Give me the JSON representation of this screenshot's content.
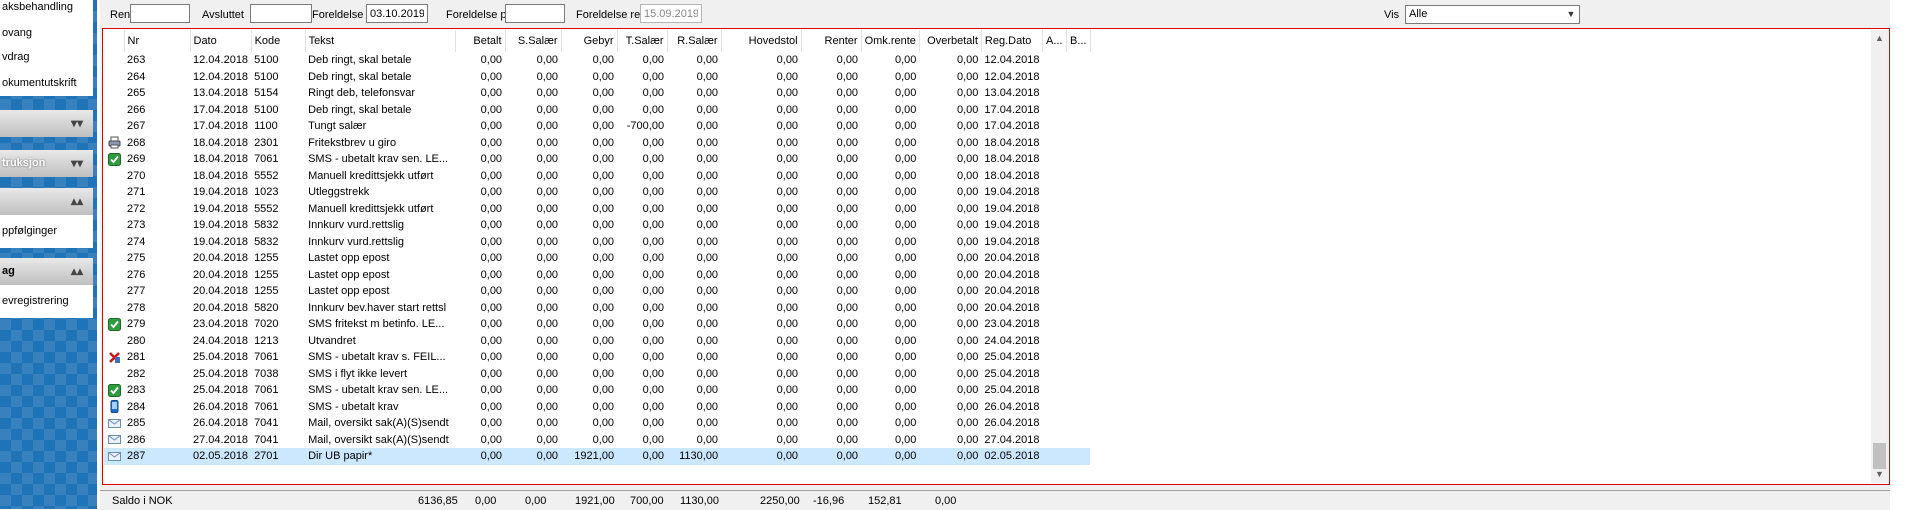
{
  "sidebar": {
    "top_items": [
      "aksbehandling",
      "ovang",
      "vdrag",
      "okumentutskrift"
    ],
    "collapsed_header": "",
    "section_header_2": "truksjon",
    "section_header_3": "",
    "mid_items": [
      "ppfølginger"
    ],
    "section_header_4": "ag",
    "bottom_items": [
      "evregistrering"
    ]
  },
  "filters": {
    "rente_til_label": "Rente til",
    "rente_til_value": "",
    "avsluttet_label": "Avsluttet",
    "avsluttet_value": "",
    "foreldelse_label": "Foreldelse",
    "foreldelse_value": "03.10.2019",
    "foreldelse_pant_label": "Foreldelse pant",
    "foreldelse_pant_value": "",
    "foreldelse_renter_label": "Foreldelse renter",
    "foreldelse_renter_value": "15.09.2019",
    "vis_label": "Vis",
    "vis_selected": "Alle"
  },
  "grid": {
    "columns": [
      "",
      "Nr",
      "Dato",
      "Kode",
      "Tekst",
      "Betalt",
      "S.Salær",
      "Gebyr",
      "T.Salær",
      "R.Salær",
      "Hovedstol",
      "Renter",
      "Omk.rente",
      "Overbetalt",
      "Reg.Dato",
      "A...",
      "B..."
    ],
    "rows": [
      {
        "icon": "",
        "nr": "263",
        "dato": "12.04.2018",
        "kode": "5100",
        "tekst": "Deb ringt, skal betale",
        "betalt": "0,00",
        "ssalaer": "0,00",
        "gebyr": "0,00",
        "tsalaer": "0,00",
        "rsalaer": "0,00",
        "hovedstol": "0,00",
        "renter": "0,00",
        "omkrente": "0,00",
        "overbetalt": "0,00",
        "regdato": "12.04.2018"
      },
      {
        "icon": "",
        "nr": "264",
        "dato": "12.04.2018",
        "kode": "5100",
        "tekst": "Deb ringt, skal betale",
        "betalt": "0,00",
        "ssalaer": "0,00",
        "gebyr": "0,00",
        "tsalaer": "0,00",
        "rsalaer": "0,00",
        "hovedstol": "0,00",
        "renter": "0,00",
        "omkrente": "0,00",
        "overbetalt": "0,00",
        "regdato": "12.04.2018"
      },
      {
        "icon": "",
        "nr": "265",
        "dato": "13.04.2018",
        "kode": "5154",
        "tekst": "Ringt deb, telefonsvar",
        "betalt": "0,00",
        "ssalaer": "0,00",
        "gebyr": "0,00",
        "tsalaer": "0,00",
        "rsalaer": "0,00",
        "hovedstol": "0,00",
        "renter": "0,00",
        "omkrente": "0,00",
        "overbetalt": "0,00",
        "regdato": "13.04.2018"
      },
      {
        "icon": "",
        "nr": "266",
        "dato": "17.04.2018",
        "kode": "5100",
        "tekst": "Deb ringt, skal betale",
        "betalt": "0,00",
        "ssalaer": "0,00",
        "gebyr": "0,00",
        "tsalaer": "0,00",
        "rsalaer": "0,00",
        "hovedstol": "0,00",
        "renter": "0,00",
        "omkrente": "0,00",
        "overbetalt": "0,00",
        "regdato": "17.04.2018"
      },
      {
        "icon": "",
        "nr": "267",
        "dato": "17.04.2018",
        "kode": "1100",
        "tekst": "Tungt salær",
        "betalt": "0,00",
        "ssalaer": "0,00",
        "gebyr": "0,00",
        "tsalaer": "-700,00",
        "rsalaer": "0,00",
        "hovedstol": "0,00",
        "renter": "0,00",
        "omkrente": "0,00",
        "overbetalt": "0,00",
        "regdato": "17.04.2018"
      },
      {
        "icon": "printer",
        "nr": "268",
        "dato": "18.04.2018",
        "kode": "2301",
        "tekst": "Fritekstbrev u giro",
        "betalt": "0,00",
        "ssalaer": "0,00",
        "gebyr": "0,00",
        "tsalaer": "0,00",
        "rsalaer": "0,00",
        "hovedstol": "0,00",
        "renter": "0,00",
        "omkrente": "0,00",
        "overbetalt": "0,00",
        "regdato": "18.04.2018"
      },
      {
        "icon": "check",
        "nr": "269",
        "dato": "18.04.2018",
        "kode": "7061",
        "tekst": "SMS - ubetalt krav sen. LE...",
        "betalt": "0,00",
        "ssalaer": "0,00",
        "gebyr": "0,00",
        "tsalaer": "0,00",
        "rsalaer": "0,00",
        "hovedstol": "0,00",
        "renter": "0,00",
        "omkrente": "0,00",
        "overbetalt": "0,00",
        "regdato": "18.04.2018"
      },
      {
        "icon": "",
        "nr": "270",
        "dato": "18.04.2018",
        "kode": "5552",
        "tekst": "Manuell kredittsjekk utført",
        "betalt": "0,00",
        "ssalaer": "0,00",
        "gebyr": "0,00",
        "tsalaer": "0,00",
        "rsalaer": "0,00",
        "hovedstol": "0,00",
        "renter": "0,00",
        "omkrente": "0,00",
        "overbetalt": "0,00",
        "regdato": "18.04.2018"
      },
      {
        "icon": "",
        "nr": "271",
        "dato": "19.04.2018",
        "kode": "1023",
        "tekst": "Utleggstrekk",
        "betalt": "0,00",
        "ssalaer": "0,00",
        "gebyr": "0,00",
        "tsalaer": "0,00",
        "rsalaer": "0,00",
        "hovedstol": "0,00",
        "renter": "0,00",
        "omkrente": "0,00",
        "overbetalt": "0,00",
        "regdato": "19.04.2018"
      },
      {
        "icon": "",
        "nr": "272",
        "dato": "19.04.2018",
        "kode": "5552",
        "tekst": "Manuell kredittsjekk utført",
        "betalt": "0,00",
        "ssalaer": "0,00",
        "gebyr": "0,00",
        "tsalaer": "0,00",
        "rsalaer": "0,00",
        "hovedstol": "0,00",
        "renter": "0,00",
        "omkrente": "0,00",
        "overbetalt": "0,00",
        "regdato": "19.04.2018"
      },
      {
        "icon": "",
        "nr": "273",
        "dato": "19.04.2018",
        "kode": "5832",
        "tekst": "Innkurv vurd.rettslig",
        "betalt": "0,00",
        "ssalaer": "0,00",
        "gebyr": "0,00",
        "tsalaer": "0,00",
        "rsalaer": "0,00",
        "hovedstol": "0,00",
        "renter": "0,00",
        "omkrente": "0,00",
        "overbetalt": "0,00",
        "regdato": "19.04.2018"
      },
      {
        "icon": "",
        "nr": "274",
        "dato": "19.04.2018",
        "kode": "5832",
        "tekst": "Innkurv vurd.rettslig",
        "betalt": "0,00",
        "ssalaer": "0,00",
        "gebyr": "0,00",
        "tsalaer": "0,00",
        "rsalaer": "0,00",
        "hovedstol": "0,00",
        "renter": "0,00",
        "omkrente": "0,00",
        "overbetalt": "0,00",
        "regdato": "19.04.2018"
      },
      {
        "icon": "",
        "nr": "275",
        "dato": "20.04.2018",
        "kode": "1255",
        "tekst": "Lastet opp epost",
        "betalt": "0,00",
        "ssalaer": "0,00",
        "gebyr": "0,00",
        "tsalaer": "0,00",
        "rsalaer": "0,00",
        "hovedstol": "0,00",
        "renter": "0,00",
        "omkrente": "0,00",
        "overbetalt": "0,00",
        "regdato": "20.04.2018"
      },
      {
        "icon": "",
        "nr": "276",
        "dato": "20.04.2018",
        "kode": "1255",
        "tekst": "Lastet opp epost",
        "betalt": "0,00",
        "ssalaer": "0,00",
        "gebyr": "0,00",
        "tsalaer": "0,00",
        "rsalaer": "0,00",
        "hovedstol": "0,00",
        "renter": "0,00",
        "omkrente": "0,00",
        "overbetalt": "0,00",
        "regdato": "20.04.2018"
      },
      {
        "icon": "",
        "nr": "277",
        "dato": "20.04.2018",
        "kode": "1255",
        "tekst": "Lastet opp epost",
        "betalt": "0,00",
        "ssalaer": "0,00",
        "gebyr": "0,00",
        "tsalaer": "0,00",
        "rsalaer": "0,00",
        "hovedstol": "0,00",
        "renter": "0,00",
        "omkrente": "0,00",
        "overbetalt": "0,00",
        "regdato": "20.04.2018"
      },
      {
        "icon": "",
        "nr": "278",
        "dato": "20.04.2018",
        "kode": "5820",
        "tekst": "Innkurv bev.haver start rettsl",
        "betalt": "0,00",
        "ssalaer": "0,00",
        "gebyr": "0,00",
        "tsalaer": "0,00",
        "rsalaer": "0,00",
        "hovedstol": "0,00",
        "renter": "0,00",
        "omkrente": "0,00",
        "overbetalt": "0,00",
        "regdato": "20.04.2018"
      },
      {
        "icon": "check",
        "nr": "279",
        "dato": "23.04.2018",
        "kode": "7020",
        "tekst": "SMS fritekst m betinfo. LE...",
        "betalt": "0,00",
        "ssalaer": "0,00",
        "gebyr": "0,00",
        "tsalaer": "0,00",
        "rsalaer": "0,00",
        "hovedstol": "0,00",
        "renter": "0,00",
        "omkrente": "0,00",
        "overbetalt": "0,00",
        "regdato": "23.04.2018"
      },
      {
        "icon": "",
        "nr": "280",
        "dato": "24.04.2018",
        "kode": "1213",
        "tekst": "Utvandret",
        "betalt": "0,00",
        "ssalaer": "0,00",
        "gebyr": "0,00",
        "tsalaer": "0,00",
        "rsalaer": "0,00",
        "hovedstol": "0,00",
        "renter": "0,00",
        "omkrente": "0,00",
        "overbetalt": "0,00",
        "regdato": "24.04.2018"
      },
      {
        "icon": "error",
        "nr": "281",
        "dato": "25.04.2018",
        "kode": "7061",
        "tekst": "SMS - ubetalt krav s. FEIL...",
        "betalt": "0,00",
        "ssalaer": "0,00",
        "gebyr": "0,00",
        "tsalaer": "0,00",
        "rsalaer": "0,00",
        "hovedstol": "0,00",
        "renter": "0,00",
        "omkrente": "0,00",
        "overbetalt": "0,00",
        "regdato": "25.04.2018"
      },
      {
        "icon": "",
        "nr": "282",
        "dato": "25.04.2018",
        "kode": "7038",
        "tekst": "SMS i flyt ikke levert",
        "betalt": "0,00",
        "ssalaer": "0,00",
        "gebyr": "0,00",
        "tsalaer": "0,00",
        "rsalaer": "0,00",
        "hovedstol": "0,00",
        "renter": "0,00",
        "omkrente": "0,00",
        "overbetalt": "0,00",
        "regdato": "25.04.2018"
      },
      {
        "icon": "check",
        "nr": "283",
        "dato": "25.04.2018",
        "kode": "7061",
        "tekst": "SMS - ubetalt krav sen. LE...",
        "betalt": "0,00",
        "ssalaer": "0,00",
        "gebyr": "0,00",
        "tsalaer": "0,00",
        "rsalaer": "0,00",
        "hovedstol": "0,00",
        "renter": "0,00",
        "omkrente": "0,00",
        "overbetalt": "0,00",
        "regdato": "25.04.2018"
      },
      {
        "icon": "phone",
        "nr": "284",
        "dato": "26.04.2018",
        "kode": "7061",
        "tekst": "SMS - ubetalt krav",
        "betalt": "0,00",
        "ssalaer": "0,00",
        "gebyr": "0,00",
        "tsalaer": "0,00",
        "rsalaer": "0,00",
        "hovedstol": "0,00",
        "renter": "0,00",
        "omkrente": "0,00",
        "overbetalt": "0,00",
        "regdato": "26.04.2018"
      },
      {
        "icon": "mail",
        "nr": "285",
        "dato": "26.04.2018",
        "kode": "7041",
        "tekst": "Mail, oversikt sak(A)(S)sendt",
        "betalt": "0,00",
        "ssalaer": "0,00",
        "gebyr": "0,00",
        "tsalaer": "0,00",
        "rsalaer": "0,00",
        "hovedstol": "0,00",
        "renter": "0,00",
        "omkrente": "0,00",
        "overbetalt": "0,00",
        "regdato": "26.04.2018"
      },
      {
        "icon": "mail",
        "nr": "286",
        "dato": "27.04.2018",
        "kode": "7041",
        "tekst": "Mail, oversikt sak(A)(S)sendt",
        "betalt": "0,00",
        "ssalaer": "0,00",
        "gebyr": "0,00",
        "tsalaer": "0,00",
        "rsalaer": "0,00",
        "hovedstol": "0,00",
        "renter": "0,00",
        "omkrente": "0,00",
        "overbetalt": "0,00",
        "regdato": "27.04.2018"
      },
      {
        "icon": "mail",
        "nr": "287",
        "dato": "02.05.2018",
        "kode": "2701",
        "tekst": "Dir UB papir*",
        "betalt": "0,00",
        "ssalaer": "0,00",
        "gebyr": "1921,00",
        "tsalaer": "0,00",
        "rsalaer": "1130,00",
        "hovedstol": "0,00",
        "renter": "0,00",
        "omkrente": "0,00",
        "overbetalt": "0,00",
        "regdato": "02.05.2018",
        "selected": true
      }
    ]
  },
  "footer": {
    "label": "Saldo i NOK",
    "values": [
      "6136,85",
      "0,00",
      "0,00",
      "1921,00",
      "700,00",
      "1130,00",
      "2250,00",
      "-16,96",
      "152,81",
      "0,00"
    ]
  },
  "colors": {
    "sidebar_bg": "#1f73b7",
    "selection": "#cce8ff",
    "frame_border": "#e00000"
  }
}
